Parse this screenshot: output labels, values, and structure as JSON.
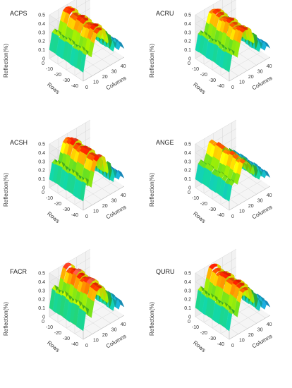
{
  "figure": {
    "colormap": [
      "#5a0aa0",
      "#1f3fd6",
      "#1e90e6",
      "#10c8a0",
      "#34c434",
      "#9ee000",
      "#ffff00",
      "#ff8c00",
      "#ff1a00",
      "#ffffff"
    ]
  },
  "chart_data": [
    {
      "type": "surface3d",
      "title": "ACPS",
      "zlabel": "Reflection(%)",
      "xlabel": "Columns",
      "ylabel": "Rows",
      "zlim": [
        0,
        0.5
      ],
      "xlim": [
        0,
        45
      ],
      "ylim": [
        -40,
        0
      ],
      "zticks": [
        "0",
        "0.1",
        "0.2",
        "0.3",
        "0.4",
        "0.5"
      ],
      "xticks": [
        "0",
        "10",
        "20",
        "30",
        "40"
      ],
      "yticks": [
        "0",
        "-10",
        "-20",
        "-30",
        "-40"
      ],
      "grid": true,
      "x": [
        0,
        3,
        6,
        9,
        12,
        15,
        18,
        21,
        24,
        27,
        30,
        33,
        36,
        39,
        42,
        45
      ],
      "profile": [
        0.1,
        0.28,
        0.3,
        0.22,
        0.36,
        0.45,
        0.47,
        0.46,
        0.44,
        0.27,
        0.34,
        0.14,
        0.22,
        0.12,
        0.18,
        0.1
      ]
    },
    {
      "type": "surface3d",
      "title": "ACRU",
      "zlabel": "Reflection(%)",
      "xlabel": "Columns",
      "ylabel": "Rows",
      "zlim": [
        0,
        0.5
      ],
      "xlim": [
        0,
        45
      ],
      "ylim": [
        -40,
        0
      ],
      "zticks": [
        "0",
        "0.1",
        "0.2",
        "0.3",
        "0.4",
        "0.5"
      ],
      "xticks": [
        "0",
        "10",
        "20",
        "30",
        "40"
      ],
      "yticks": [
        "0",
        "-10",
        "-20",
        "-30",
        "-40"
      ],
      "grid": true,
      "x": [
        0,
        3,
        6,
        9,
        12,
        15,
        18,
        21,
        24,
        27,
        30,
        33,
        36,
        39,
        42,
        45
      ],
      "profile": [
        0.1,
        0.27,
        0.29,
        0.21,
        0.35,
        0.45,
        0.46,
        0.45,
        0.43,
        0.26,
        0.33,
        0.13,
        0.21,
        0.11,
        0.17,
        0.1
      ]
    },
    {
      "type": "surface3d",
      "title": "ACSH",
      "zlabel": "Reflection(%)",
      "xlabel": "Columns",
      "ylabel": "Rows",
      "zlim": [
        0,
        0.5
      ],
      "xlim": [
        0,
        45
      ],
      "ylim": [
        -40,
        0
      ],
      "zticks": [
        "0",
        "0.1",
        "0.2",
        "0.3",
        "0.4",
        "0.5"
      ],
      "xticks": [
        "0",
        "10",
        "20",
        "30",
        "40"
      ],
      "yticks": [
        "0",
        "-10",
        "-20",
        "-30",
        "-40"
      ],
      "grid": true,
      "x": [
        0,
        3,
        6,
        9,
        12,
        15,
        18,
        21,
        24,
        27,
        30,
        33,
        36,
        39,
        42,
        45
      ],
      "profile": [
        0.1,
        0.28,
        0.3,
        0.2,
        0.35,
        0.45,
        0.48,
        0.47,
        0.44,
        0.25,
        0.34,
        0.12,
        0.22,
        0.11,
        0.17,
        0.09
      ]
    },
    {
      "type": "surface3d",
      "title": "ANGE",
      "zlabel": "Reflection(%)",
      "xlabel": "Columns",
      "ylabel": "Rows",
      "zlim": [
        0,
        0.5
      ],
      "xlim": [
        0,
        45
      ],
      "ylim": [
        -40,
        0
      ],
      "zticks": [
        "0",
        "0.1",
        "0.2",
        "0.3",
        "0.4",
        "0.5"
      ],
      "xticks": [
        "0",
        "10",
        "20",
        "30",
        "40"
      ],
      "yticks": [
        "0",
        "-10",
        "-20",
        "-30",
        "-40"
      ],
      "grid": true,
      "x": [
        0,
        3,
        6,
        9,
        12,
        15,
        18,
        21,
        24,
        27,
        30,
        33,
        36,
        39,
        42,
        45
      ],
      "profile": [
        0.1,
        0.26,
        0.29,
        0.24,
        0.33,
        0.44,
        0.45,
        0.41,
        0.36,
        0.24,
        0.31,
        0.15,
        0.22,
        0.13,
        0.18,
        0.1
      ]
    },
    {
      "type": "surface3d",
      "title": "FACR",
      "zlabel": "Reflection(%)",
      "xlabel": "Columns",
      "ylabel": "Rows",
      "zlim": [
        0,
        0.5
      ],
      "xlim": [
        0,
        45
      ],
      "ylim": [
        -40,
        0
      ],
      "zticks": [
        "0",
        "0.1",
        "0.2",
        "0.3",
        "0.4",
        "0.5"
      ],
      "xticks": [
        "0",
        "10",
        "20",
        "30",
        "40"
      ],
      "yticks": [
        "0",
        "-10",
        "-20",
        "-30",
        "-40"
      ],
      "grid": true,
      "x": [
        0,
        3,
        6,
        9,
        12,
        15,
        18,
        21,
        24,
        27,
        30,
        33,
        36,
        39,
        42,
        45
      ],
      "profile": [
        0.1,
        0.3,
        0.32,
        0.2,
        0.37,
        0.47,
        0.49,
        0.48,
        0.45,
        0.26,
        0.35,
        0.13,
        0.23,
        0.11,
        0.19,
        0.1
      ]
    },
    {
      "type": "surface3d",
      "title": "QURU",
      "zlabel": "Reflection(%)",
      "xlabel": "Columns",
      "ylabel": "Rows",
      "zlim": [
        0,
        0.5
      ],
      "xlim": [
        0,
        45
      ],
      "ylim": [
        -40,
        0
      ],
      "zticks": [
        "0",
        "0.1",
        "0.2",
        "0.3",
        "0.4",
        "0.5"
      ],
      "xticks": [
        "0",
        "10",
        "20",
        "30",
        "40"
      ],
      "yticks": [
        "0",
        "-10",
        "-20",
        "-30",
        "-40"
      ],
      "grid": true,
      "x": [
        0,
        3,
        6,
        9,
        12,
        15,
        18,
        21,
        24,
        27,
        30,
        33,
        36,
        39,
        42,
        45
      ],
      "profile": [
        0.1,
        0.28,
        0.3,
        0.21,
        0.36,
        0.46,
        0.47,
        0.46,
        0.44,
        0.26,
        0.34,
        0.13,
        0.22,
        0.11,
        0.18,
        0.1
      ]
    }
  ]
}
